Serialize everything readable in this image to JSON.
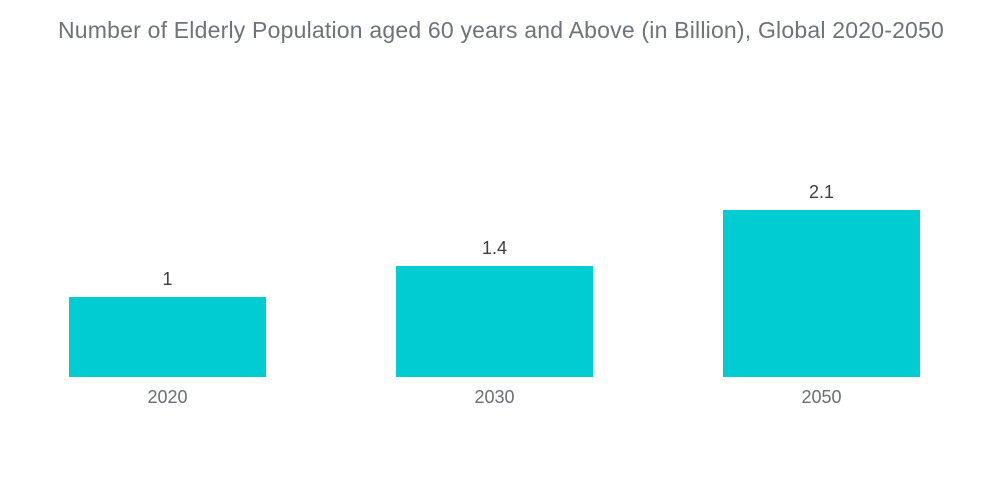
{
  "chart_data": {
    "type": "bar",
    "title": "Number of Elderly Population aged 60 years and Above (in Billion), Global 2020-2050",
    "categories": [
      "2020",
      "2030",
      "2050"
    ],
    "values": [
      1,
      1.4,
      2.1
    ],
    "value_labels": [
      "1",
      "1.4",
      "2.1"
    ],
    "xlabel": "",
    "ylabel": "",
    "ylim": [
      0,
      2.5
    ],
    "grid": false,
    "legend": false,
    "bar_color": "#00ccd2",
    "title_color": "#6f7276",
    "value_label_color": "#3c3f42",
    "category_label_color": "#6b6e71",
    "background_color": "#ffffff"
  }
}
